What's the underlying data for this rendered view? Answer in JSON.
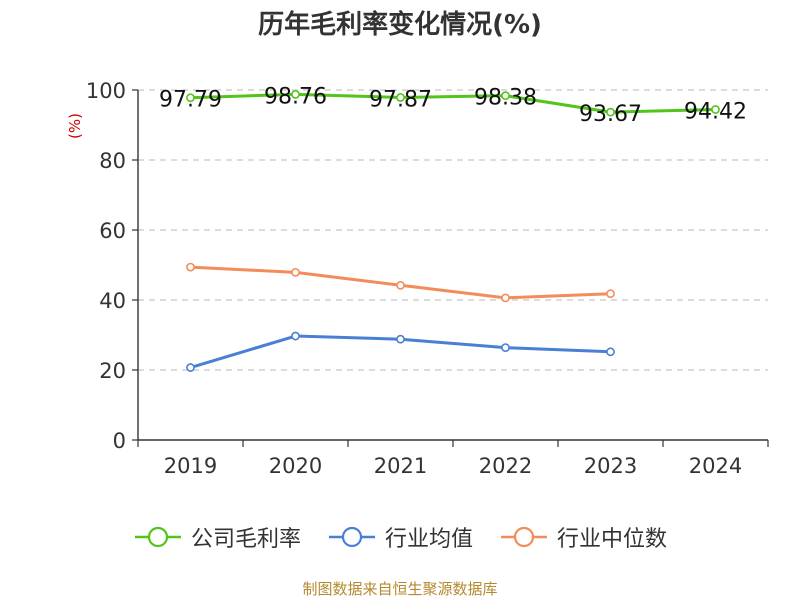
{
  "title": "历年毛利率变化情况(%)",
  "source_text": "制图数据来自恒生聚源数据库",
  "colors": {
    "company": "#52c41a",
    "industry_avg": "#4a7fd6",
    "industry_median": "#f28c5a",
    "ylabel": "#cc0000",
    "grid": "#c8c8c8",
    "axis": "#333333",
    "source": "#b5892e"
  },
  "chart_data": {
    "type": "line",
    "title": "历年毛利率变化情况(%)",
    "ylabel": "(%)",
    "xlabel": "",
    "categories": [
      "2019",
      "2020",
      "2021",
      "2022",
      "2023",
      "2024"
    ],
    "ylim": [
      0,
      100
    ],
    "yticks": [
      0,
      20,
      40,
      60,
      80,
      100
    ],
    "grid": "horizontal dashed",
    "legend_position": "bottom",
    "series": [
      {
        "name": "公司毛利率",
        "color_key": "company",
        "values": [
          97.79,
          98.76,
          97.87,
          98.38,
          93.67,
          94.42
        ],
        "labels": [
          "97.79",
          "98.76",
          "97.87",
          "98.38",
          "93.67",
          "94.42"
        ]
      },
      {
        "name": "行业均值",
        "color_key": "industry_avg",
        "values": [
          20.7,
          29.7,
          28.8,
          26.4,
          25.2,
          null
        ]
      },
      {
        "name": "行业中位数",
        "color_key": "industry_median",
        "values": [
          49.4,
          47.9,
          44.2,
          40.6,
          41.8,
          null
        ]
      }
    ]
  }
}
